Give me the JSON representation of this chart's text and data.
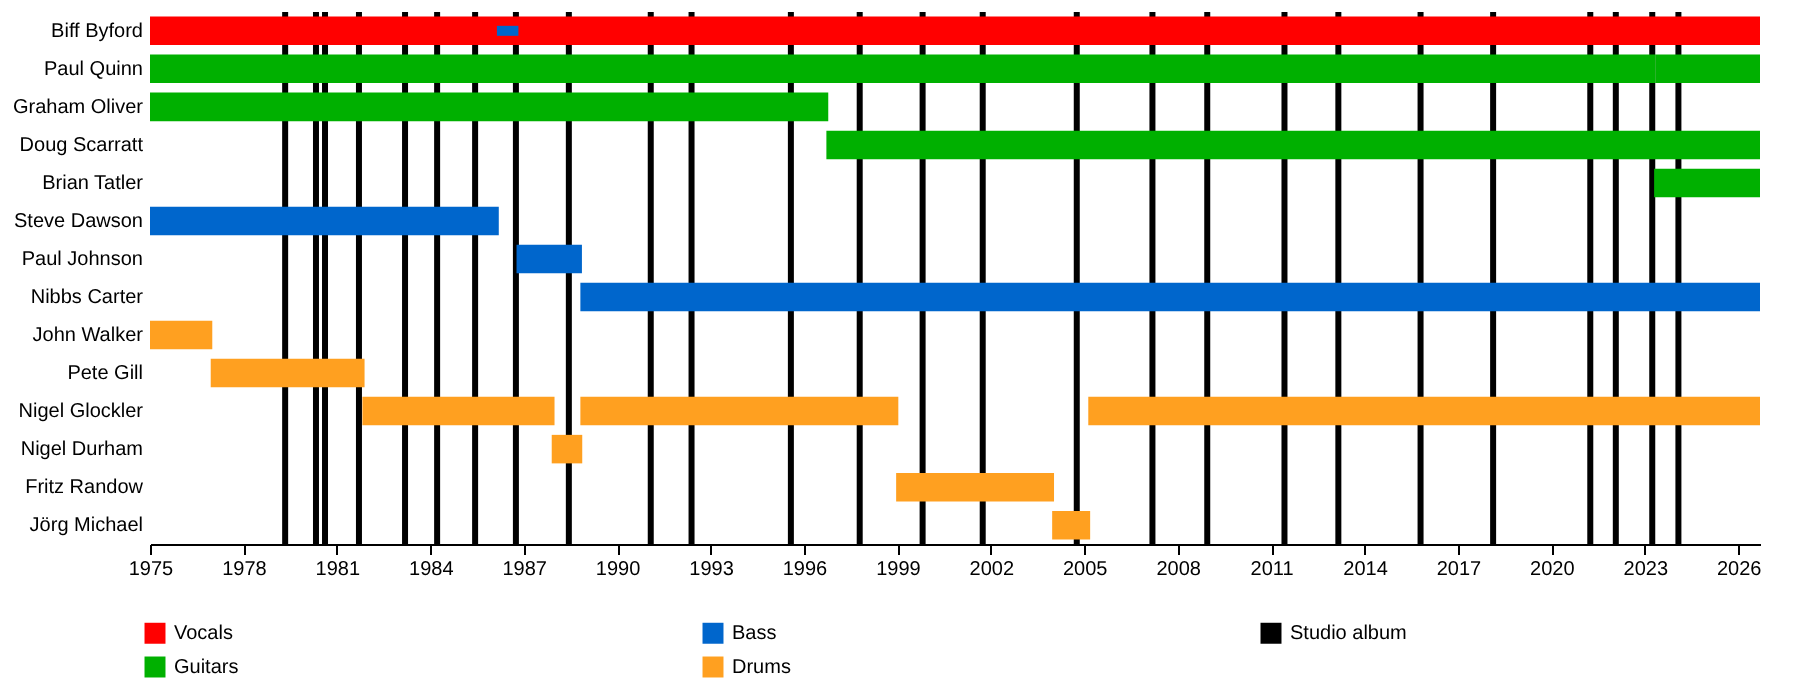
{
  "chart_data": {
    "type": "bar",
    "orientation": "horizontal",
    "legend": "bottom",
    "categories": [
      "Biff Byford",
      "Paul Quinn",
      "Graham Oliver",
      "Doug Scarratt",
      "Brian Tatler",
      "Steve Dawson",
      "Paul Johnson",
      "Nibbs Carter",
      "John Walker",
      "Pete Gill",
      "Nigel Glockler",
      "Nigel Durham",
      "Fritz Randow",
      "Jörg Michael"
    ],
    "xlim": [
      1975,
      2026.7
    ],
    "xticks": [
      1975,
      1978,
      1981,
      1984,
      1987,
      1990,
      1993,
      1996,
      1999,
      2002,
      2005,
      2008,
      2011,
      2014,
      2017,
      2020,
      2023,
      2026
    ],
    "series": [
      {
        "name": "Vocals",
        "color": "#ff0000",
        "base": [
          1975,
          null,
          null,
          null,
          null,
          null,
          null,
          null,
          null,
          null,
          null,
          null,
          null,
          null
        ],
        "values": [
          51.7,
          null,
          null,
          null,
          null,
          null,
          null,
          null,
          null,
          null,
          null,
          null,
          null,
          null
        ]
      },
      {
        "name": "Guitars",
        "color": "#00b000",
        "base": [
          null,
          1975,
          1975,
          1996.72,
          2023.3,
          null,
          null,
          null,
          null,
          null,
          null,
          null,
          null,
          null
        ],
        "values": [
          null,
          48.35,
          21.78,
          29.98,
          3.4,
          null,
          null,
          null,
          null,
          null,
          null,
          null,
          null,
          null
        ]
      },
      {
        "name": "Bass",
        "color": "#0066cc",
        "base": [
          null,
          null,
          null,
          null,
          null,
          1975,
          1986.77,
          1988.82,
          null,
          null,
          null,
          null,
          null,
          null
        ],
        "values": [
          null,
          null,
          null,
          null,
          null,
          11.2,
          2.1,
          37.88,
          null,
          null,
          null,
          null,
          null,
          null
        ]
      },
      {
        "name": "Drums",
        "color": "#ffa020",
        "base": [
          null,
          null,
          null,
          null,
          null,
          null,
          null,
          null,
          1975,
          1976.95,
          1981.82,
          1987.9,
          1998.96,
          2003.97
        ],
        "values": [
          null,
          null,
          null,
          null,
          null,
          null,
          null,
          null,
          2.0,
          4.94,
          6.17,
          0.98,
          5.07,
          1.22
        ]
      },
      {
        "color": "#0066cc",
        "base": [
          1986.14,
          null,
          null,
          null,
          null,
          null,
          null,
          null,
          null,
          null,
          null,
          null,
          null,
          null
        ],
        "values": [
          0.69,
          null,
          null,
          null,
          null,
          null,
          null,
          null,
          null,
          null,
          null,
          null,
          null,
          null
        ]
      },
      {
        "color": "#00b000",
        "base": [
          null,
          2023.35,
          null,
          null,
          null,
          null,
          null,
          null,
          null,
          null,
          null,
          null,
          null,
          null
        ],
        "values": [
          null,
          3.35,
          null,
          null,
          null,
          null,
          null,
          null,
          null,
          null,
          null,
          null,
          null,
          null
        ]
      },
      {
        "color": "#ffa020",
        "base": [
          null,
          null,
          null,
          null,
          null,
          null,
          null,
          null,
          null,
          null,
          1988.82,
          null,
          null,
          null
        ],
        "values": [
          null,
          null,
          null,
          null,
          null,
          null,
          null,
          null,
          null,
          null,
          10.21,
          null,
          null,
          null
        ]
      },
      {
        "color": "#ffa020",
        "base": [
          null,
          null,
          null,
          null,
          null,
          null,
          null,
          null,
          null,
          null,
          2005.13,
          null,
          null,
          null
        ],
        "values": [
          null,
          null,
          null,
          null,
          null,
          null,
          null,
          null,
          null,
          null,
          21.57,
          null,
          null,
          null
        ]
      }
    ],
    "ref_lines": [
      {
        "axis": "x",
        "value": 1979.34,
        "label": "Studio album",
        "color": "#000000"
      },
      {
        "axis": "x",
        "value": 1980.33,
        "color": "#000000"
      },
      {
        "axis": "x",
        "value": 1980.62,
        "color": "#000000"
      },
      {
        "axis": "x",
        "value": 1981.71,
        "color": "#000000"
      },
      {
        "axis": "x",
        "value": 1983.19,
        "color": "#000000"
      },
      {
        "axis": "x",
        "value": 1984.22,
        "color": "#000000"
      },
      {
        "axis": "x",
        "value": 1985.44,
        "color": "#000000"
      },
      {
        "axis": "x",
        "value": 1986.75,
        "color": "#000000"
      },
      {
        "axis": "x",
        "value": 1988.45,
        "color": "#000000"
      },
      {
        "axis": "x",
        "value": 1991.08,
        "color": "#000000"
      },
      {
        "axis": "x",
        "value": 1992.39,
        "color": "#000000"
      },
      {
        "axis": "x",
        "value": 1995.58,
        "color": "#000000"
      },
      {
        "axis": "x",
        "value": 1997.79,
        "color": "#000000"
      },
      {
        "axis": "x",
        "value": 1999.81,
        "color": "#000000"
      },
      {
        "axis": "x",
        "value": 2001.74,
        "color": "#000000"
      },
      {
        "axis": "x",
        "value": 2004.76,
        "color": "#000000"
      },
      {
        "axis": "x",
        "value": 2007.19,
        "color": "#000000"
      },
      {
        "axis": "x",
        "value": 2008.95,
        "color": "#000000"
      },
      {
        "axis": "x",
        "value": 2011.43,
        "color": "#000000"
      },
      {
        "axis": "x",
        "value": 2013.16,
        "color": "#000000"
      },
      {
        "axis": "x",
        "value": 2015.8,
        "color": "#000000"
      },
      {
        "axis": "x",
        "value": 2018.13,
        "color": "#000000"
      },
      {
        "axis": "x",
        "value": 2021.25,
        "color": "#000000"
      },
      {
        "axis": "x",
        "value": 2022.07,
        "color": "#000000"
      },
      {
        "axis": "x",
        "value": 2023.24,
        "color": "#000000"
      },
      {
        "axis": "x",
        "value": 2024.08,
        "color": "#000000"
      }
    ]
  }
}
